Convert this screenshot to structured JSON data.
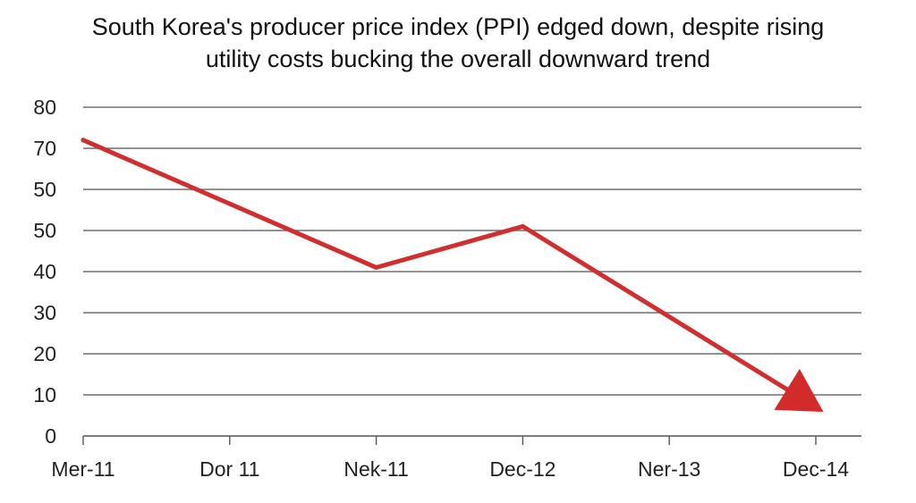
{
  "chart_data": {
    "type": "line",
    "title_lines": [
      "South Korea's producer price index (PPI) edged down, despite rising",
      "utility costs bucking the overall downward trend"
    ],
    "xlabel": "",
    "ylabel": "",
    "y_tick_labels": [
      "80",
      "70",
      "50",
      "50",
      "40",
      "30",
      "20",
      "10",
      "0"
    ],
    "x_tick_labels": [
      "Mer-11",
      "Dor 11",
      "Nek-11",
      "Dec-12",
      "Ner-13",
      "Dec-14"
    ],
    "ylim": [
      0,
      80
    ],
    "grid": true,
    "legend": "none",
    "series": [
      {
        "points": [
          {
            "x": "Mer-11",
            "y": 72
          },
          {
            "x": "Nek-11",
            "y": 41
          },
          {
            "x": "Dec-12",
            "y": 51
          },
          {
            "x": "Dec-14",
            "y": 7
          }
        ],
        "end_marker": "arrow"
      }
    ],
    "colors": {
      "line": "#d12f2f",
      "arrow": "#d32a2a",
      "grid": "#6e6e6e",
      "axis": "#555555"
    }
  }
}
